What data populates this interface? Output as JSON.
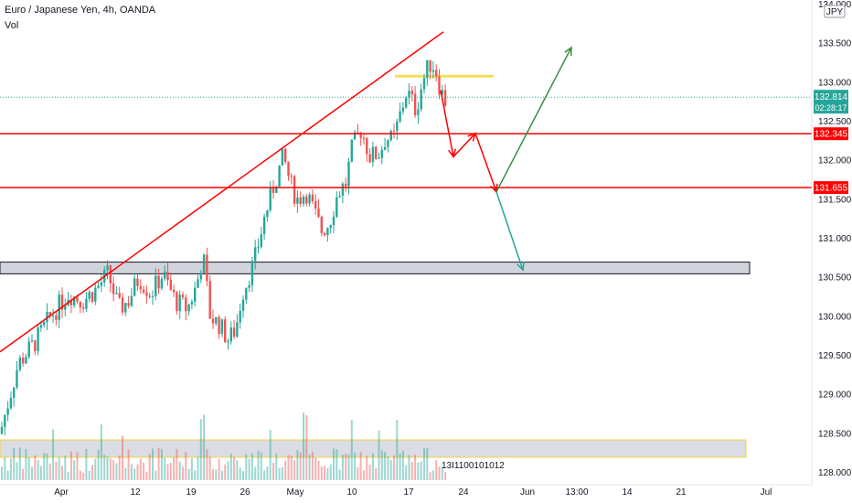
{
  "header": {
    "title": "Euro / Japanese Yen, 4h, OANDA",
    "volume_label": "Vol"
  },
  "currency_badge": "JPY",
  "price_badges": {
    "last_price": "132.814",
    "countdown": "02:28:17",
    "level_1": "132.345",
    "level_2": "131.655"
  },
  "colors": {
    "up": "#26a69a",
    "down": "#ef5350",
    "levels": "#ff0000",
    "accent": "#26a69a"
  },
  "volume_labels": "13I1100101012",
  "chart_data": {
    "type": "candlestick",
    "title": "Euro / Japanese Yen, 4h, OANDA",
    "y_ticks": [
      "134.000",
      "133.500",
      "133.000",
      "132.500",
      "132.000",
      "131.500",
      "131.000",
      "130.500",
      "130.000",
      "129.500",
      "129.000",
      "128.500",
      "128.000"
    ],
    "x_ticks": [
      "Apr",
      "12",
      "19",
      "26",
      "May",
      "10",
      "17",
      "24",
      "Jun",
      "13:00",
      "14",
      "21",
      "Jul"
    ],
    "ylim": [
      128.0,
      134.0
    ],
    "last_price": 132.814,
    "horizontal_levels": [
      132.345,
      131.655
    ],
    "support_zone": [
      130.55,
      130.7
    ],
    "resistance_zone": [
      133.05,
      133.1
    ],
    "close_path": [
      [
        0,
        128.5
      ],
      [
        20,
        129.4
      ],
      [
        40,
        129.7
      ],
      [
        55,
        130.0
      ],
      [
        75,
        130.3
      ],
      [
        90,
        130.2
      ],
      [
        105,
        130.35
      ],
      [
        118,
        130.55
      ],
      [
        130,
        130.1
      ],
      [
        140,
        130.2
      ],
      [
        152,
        130.5
      ],
      [
        165,
        130.3
      ],
      [
        178,
        130.55
      ],
      [
        192,
        130.2
      ],
      [
        205,
        130.1
      ],
      [
        215,
        130.4
      ],
      [
        222,
        130.8
      ],
      [
        230,
        130.0
      ],
      [
        240,
        129.9
      ],
      [
        250,
        129.7
      ],
      [
        258,
        129.85
      ],
      [
        265,
        130.3
      ],
      [
        278,
        130.7
      ],
      [
        290,
        131.3
      ],
      [
        300,
        131.7
      ],
      [
        310,
        132.05
      ],
      [
        318,
        131.7
      ],
      [
        325,
        131.5
      ],
      [
        335,
        131.6
      ],
      [
        345,
        131.3
      ],
      [
        352,
        131.1
      ],
      [
        360,
        131.2
      ],
      [
        370,
        131.6
      ],
      [
        378,
        131.7
      ],
      [
        385,
        132.15
      ],
      [
        395,
        132.4
      ],
      [
        405,
        132.05
      ],
      [
        415,
        132.1
      ],
      [
        422,
        132.3
      ],
      [
        430,
        132.25
      ],
      [
        438,
        132.6
      ],
      [
        445,
        132.9
      ],
      [
        455,
        132.65
      ],
      [
        462,
        133.0
      ],
      [
        470,
        133.25
      ],
      [
        476,
        133.2
      ],
      [
        482,
        132.9
      ],
      [
        488,
        132.75
      ]
    ],
    "projections": [
      {
        "name": "red",
        "points": [
          [
            482,
            132.9
          ],
          [
            496,
            132.05
          ],
          [
            520,
            132.35
          ],
          [
            543,
            131.6
          ]
        ]
      },
      {
        "name": "teal",
        "points": [
          [
            543,
            131.6
          ],
          [
            572,
            130.6
          ]
        ]
      },
      {
        "name": "green",
        "points": [
          [
            543,
            131.6
          ],
          [
            625,
            133.45
          ]
        ]
      }
    ],
    "trendline": [
      [
        0,
        129.55
      ],
      [
        485,
        133.65
      ]
    ]
  }
}
